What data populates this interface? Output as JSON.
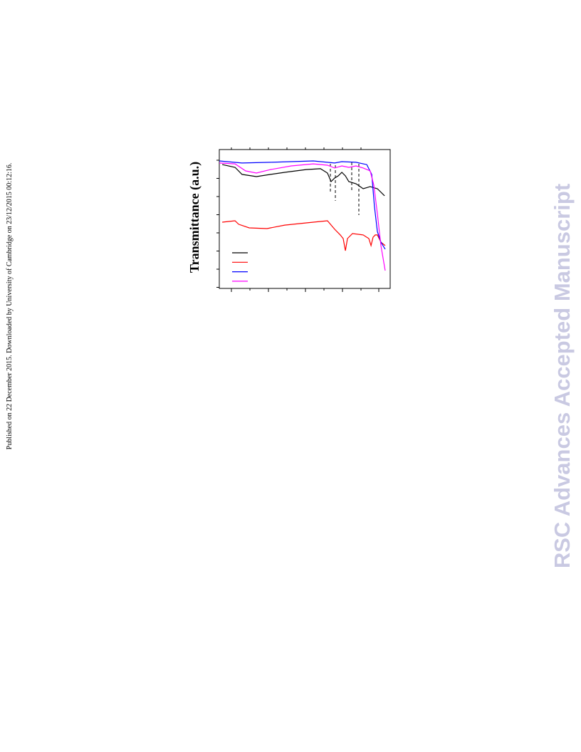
{
  "side_note": "Published on 22 December 2015. Downloaded by University of Cambridge on 23/12/2015 00:12:16.",
  "watermark": "RSC Advances Accepted Manuscript",
  "chart_data": {
    "type": "line",
    "y_label": "Transmittance (a.u.)",
    "xlim": [
      0,
      100
    ],
    "ylim": [
      0,
      100
    ],
    "series": [
      {
        "color": "#000000",
        "x": [
          1.7,
          9.2,
          13.3,
          21.7,
          30,
          38.3,
          50.8,
          59.2,
          63.3,
          65.4,
          67.5,
          69.6,
          71.7,
          73.8,
          75.8,
          80,
          84.2,
          88.3,
          92.5,
          96.7
        ],
        "values": [
          89.2,
          87.2,
          82.1,
          80.5,
          82.1,
          83.6,
          85.6,
          86.2,
          83.1,
          76.9,
          79.5,
          81,
          83.6,
          81,
          76.9,
          75.4,
          71.8,
          73.3,
          71.8,
          66.7
        ]
      },
      {
        "color": "#ff0000",
        "x": [
          1.7,
          9.2,
          11.3,
          17.5,
          27.9,
          30,
          38.3,
          55,
          63.3,
          67.5,
          70.8,
          72.5,
          73.8,
          75,
          77.9,
          84.2,
          87.5,
          88.8,
          90,
          91.3,
          92.5,
          94.6,
          97.1
        ],
        "values": [
          47.7,
          48.7,
          46.2,
          43.6,
          43.1,
          43.6,
          45.6,
          47.7,
          48.7,
          42.6,
          38.5,
          35.9,
          27.2,
          35.9,
          39.5,
          38.5,
          35.9,
          30.8,
          36.9,
          38.5,
          38.5,
          33.3,
          30.8
        ]
      },
      {
        "color": "#0000ff",
        "x": [
          0,
          13.3,
          30,
          55,
          67.5,
          71.7,
          80,
          86.3,
          89.2,
          90.8,
          92.5,
          94.6,
          97.1
        ],
        "values": [
          91.8,
          90.3,
          90.8,
          91.8,
          90.3,
          91.3,
          90.8,
          89.2,
          82.1,
          59,
          41,
          33.3,
          28.2
        ]
      },
      {
        "color": "#ff00ff",
        "x": [
          0,
          9.2,
          15.4,
          21.7,
          30,
          42.1,
          55,
          63.3,
          67.5,
          71.7,
          75.8,
          80,
          84.2,
          88.3,
          90.4,
          92.5,
          94.6,
          97.1
        ],
        "values": [
          90.3,
          89.7,
          84.6,
          83.1,
          85.6,
          88.2,
          89.7,
          88.7,
          86.7,
          88.2,
          87.2,
          88.2,
          86.7,
          84.6,
          74.4,
          53.8,
          30.8,
          12.8
        ]
      }
    ]
  }
}
